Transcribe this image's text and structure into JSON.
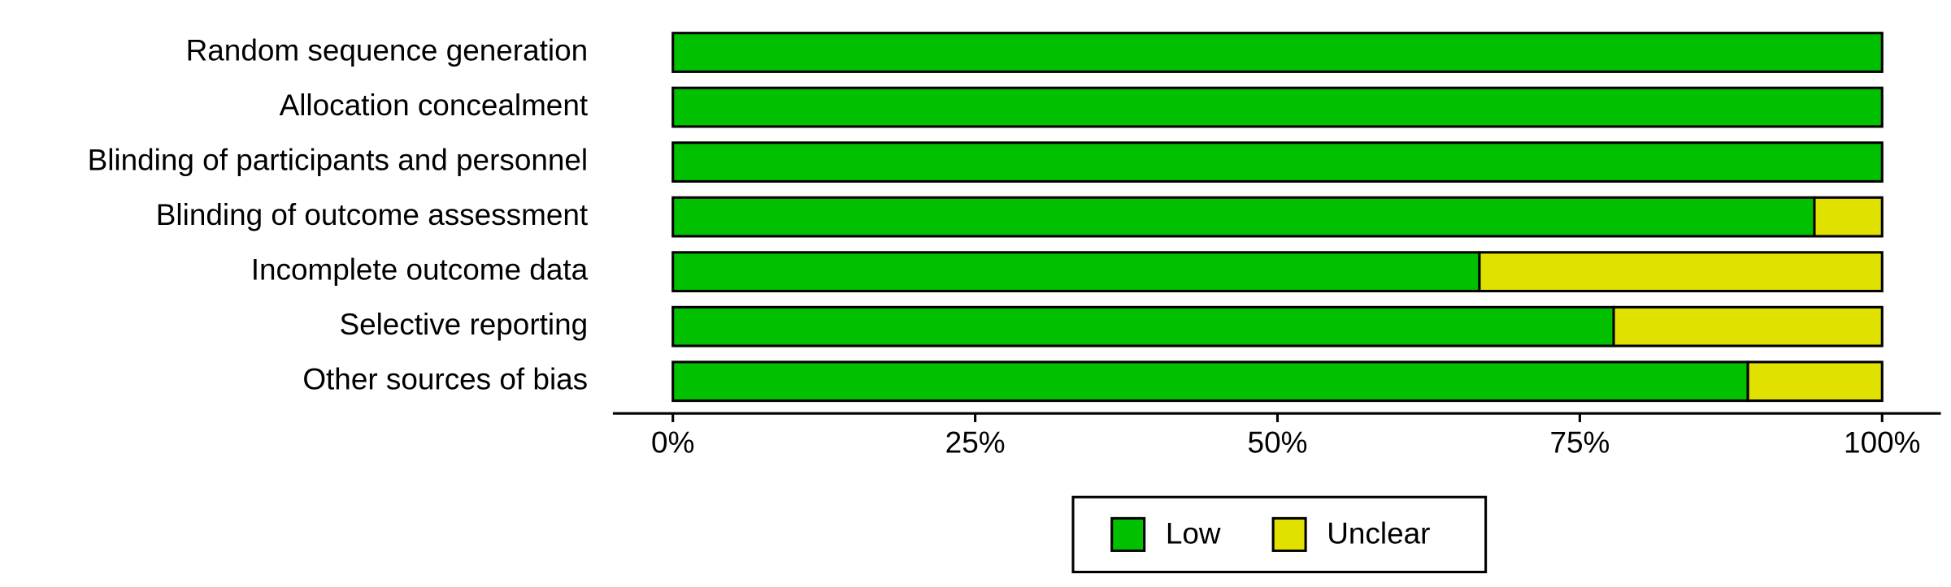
{
  "chart_data": {
    "type": "bar",
    "orientation": "horizontal",
    "stacked": true,
    "categories": [
      "Random sequence generation",
      "Allocation concealment",
      "Blinding of participants and personnel",
      "Blinding of outcome assessment",
      "Incomplete outcome data",
      "Selective reporting",
      "Other sources of bias"
    ],
    "series": [
      {
        "name": "Low",
        "color": "#00c000",
        "values": [
          100,
          100,
          100,
          94.4,
          66.7,
          77.8,
          88.9
        ]
      },
      {
        "name": "Unclear",
        "color": "#e1e100",
        "values": [
          0,
          0,
          0,
          5.6,
          33.3,
          22.2,
          11.1
        ]
      }
    ],
    "xlim": [
      0,
      100
    ],
    "xticks": [
      {
        "value": 0,
        "label": "0%"
      },
      {
        "value": 25,
        "label": "25%"
      },
      {
        "value": 50,
        "label": "50%"
      },
      {
        "value": 75,
        "label": "75%"
      },
      {
        "value": 100,
        "label": "100%"
      }
    ],
    "legend": "bottom"
  }
}
